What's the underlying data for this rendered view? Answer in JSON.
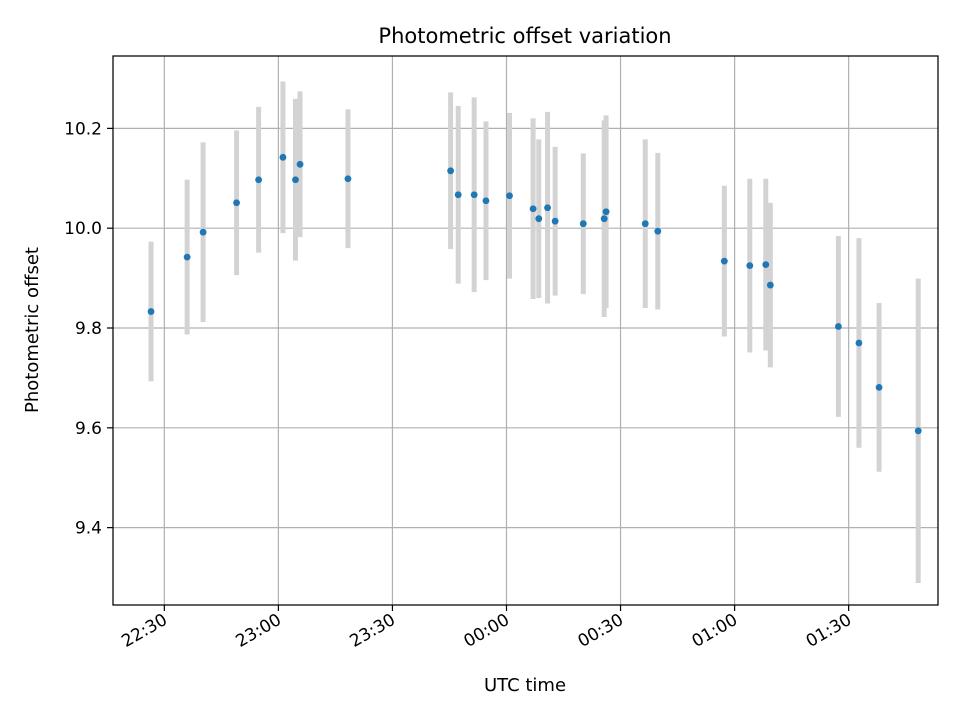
{
  "chart_data": {
    "type": "scatter",
    "title": "Photometric offset variation",
    "xlabel": "UTC time",
    "ylabel": "Photometric offset",
    "x_tick_labels": [
      "22:30",
      "23:00",
      "23:30",
      "00:00",
      "00:30",
      "01:00",
      "01:30"
    ],
    "x_ticks_minutes": [
      0,
      30,
      60,
      90,
      120,
      150,
      180
    ],
    "x_axis_unit": "minutes since 22:30 UTC",
    "xlim": [
      -13.5,
      203.5
    ],
    "y_ticks": [
      9.4,
      9.6,
      9.8,
      10.0,
      10.2
    ],
    "y_tick_labels": [
      "9.4",
      "9.6",
      "9.8",
      "10.0",
      "10.2"
    ],
    "ylim": [
      9.245,
      10.345
    ],
    "grid": true,
    "colors": {
      "point": "#1f77b4",
      "errorbar": "#d3d3d3",
      "grid": "#b0b0b0"
    },
    "series": [
      {
        "points": [
          {
            "x": -3.5,
            "y": 9.833,
            "err": 0.14
          },
          {
            "x": 6.0,
            "y": 9.942,
            "err": 0.155
          },
          {
            "x": 10.2,
            "y": 9.992,
            "err": 0.18
          },
          {
            "x": 19.0,
            "y": 10.051,
            "err": 0.145
          },
          {
            "x": 24.8,
            "y": 10.097,
            "err": 0.146
          },
          {
            "x": 31.2,
            "y": 10.142,
            "err": 0.152
          },
          {
            "x": 34.5,
            "y": 10.097,
            "err": 0.162
          },
          {
            "x": 35.7,
            "y": 10.128,
            "err": 0.146
          },
          {
            "x": 48.3,
            "y": 10.099,
            "err": 0.139
          },
          {
            "x": 75.3,
            "y": 10.115,
            "err": 0.157
          },
          {
            "x": 77.3,
            "y": 10.067,
            "err": 0.178
          },
          {
            "x": 81.5,
            "y": 10.067,
            "err": 0.195
          },
          {
            "x": 84.6,
            "y": 10.055,
            "err": 0.159
          },
          {
            "x": 90.8,
            "y": 10.065,
            "err": 0.166
          },
          {
            "x": 97.0,
            "y": 10.039,
            "err": 0.181
          },
          {
            "x": 98.5,
            "y": 10.019,
            "err": 0.159
          },
          {
            "x": 100.8,
            "y": 10.041,
            "err": 0.192
          },
          {
            "x": 102.8,
            "y": 10.014,
            "err": 0.149
          },
          {
            "x": 110.2,
            "y": 10.009,
            "err": 0.141
          },
          {
            "x": 115.7,
            "y": 10.019,
            "err": 0.197
          },
          {
            "x": 116.2,
            "y": 10.033,
            "err": 0.193
          },
          {
            "x": 126.5,
            "y": 10.009,
            "err": 0.169
          },
          {
            "x": 129.8,
            "y": 9.994,
            "err": 0.157
          },
          {
            "x": 147.3,
            "y": 9.934,
            "err": 0.151
          },
          {
            "x": 154.0,
            "y": 9.925,
            "err": 0.174
          },
          {
            "x": 158.2,
            "y": 9.927,
            "err": 0.172
          },
          {
            "x": 159.4,
            "y": 9.886,
            "err": 0.165
          },
          {
            "x": 177.3,
            "y": 9.803,
            "err": 0.181
          },
          {
            "x": 182.7,
            "y": 9.77,
            "err": 0.21
          },
          {
            "x": 188.0,
            "y": 9.681,
            "err": 0.169
          },
          {
            "x": 198.3,
            "y": 9.594,
            "err": 0.305
          }
        ]
      }
    ]
  }
}
